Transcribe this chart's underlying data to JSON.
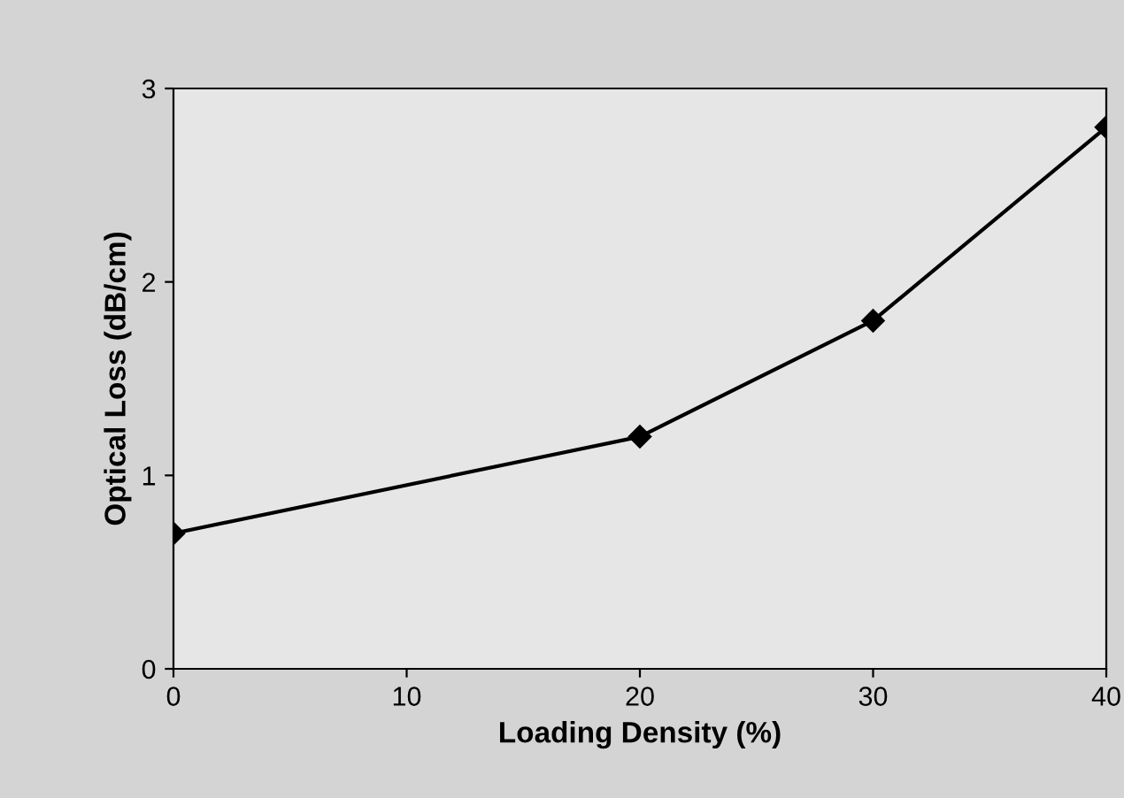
{
  "chart_data": {
    "type": "line",
    "xlabel": "Loading Density (%)",
    "ylabel": "Optical Loss (dB/cm)",
    "x": [
      0,
      20,
      30,
      40
    ],
    "series": [
      {
        "color": "#000000",
        "values": [
          0.7,
          1.2,
          1.8,
          2.8
        ]
      }
    ],
    "xlim": [
      0,
      40
    ],
    "xticks": [
      0,
      10,
      20,
      30,
      40
    ],
    "ylim": [
      0,
      3
    ],
    "yticks": [
      0,
      1,
      2,
      3
    ],
    "marker": "diamond",
    "line_style": "solid",
    "grid": false,
    "legend": false
  }
}
